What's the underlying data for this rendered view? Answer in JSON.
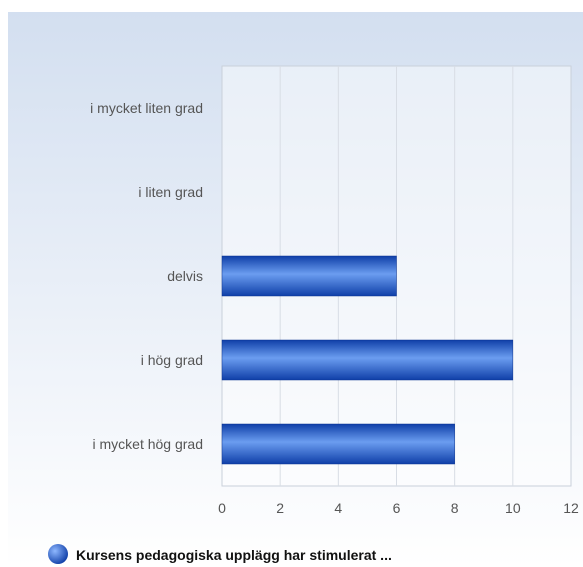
{
  "chart_data": {
    "type": "bar",
    "orientation": "horizontal",
    "categories": [
      "i mycket liten grad",
      "i liten grad",
      "delvis",
      "i hög grad",
      "i mycket hög grad"
    ],
    "series": [
      {
        "name": "Kursens pedagogiska upplägg har stimulerat ...",
        "values": [
          0,
          0,
          6,
          10,
          8
        ],
        "color": "#1e5fcf"
      }
    ],
    "xlim": [
      0,
      12
    ],
    "x_ticks": [
      0,
      2,
      4,
      6,
      8,
      10,
      12
    ],
    "grid": true,
    "legend_position": "bottom-left"
  },
  "colors": {
    "background_top": "#d3dff0",
    "background_bottom": "#ffffff",
    "bar_dark": "#0f3fa8",
    "bar_light": "#6b9df0",
    "grid": "#d8dde5"
  }
}
